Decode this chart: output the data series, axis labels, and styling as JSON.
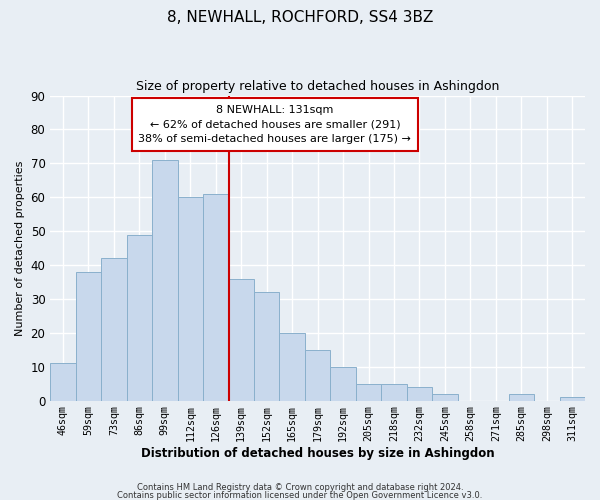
{
  "title": "8, NEWHALL, ROCHFORD, SS4 3BZ",
  "subtitle": "Size of property relative to detached houses in Ashingdon",
  "xlabel": "Distribution of detached houses by size in Ashingdon",
  "ylabel": "Number of detached properties",
  "bar_color": "#c8d8ec",
  "bar_edge_color": "#8ab0cc",
  "categories": [
    "46sqm",
    "59sqm",
    "73sqm",
    "86sqm",
    "99sqm",
    "112sqm",
    "126sqm",
    "139sqm",
    "152sqm",
    "165sqm",
    "179sqm",
    "192sqm",
    "205sqm",
    "218sqm",
    "232sqm",
    "245sqm",
    "258sqm",
    "271sqm",
    "285sqm",
    "298sqm",
    "311sqm"
  ],
  "values": [
    11,
    38,
    42,
    49,
    71,
    60,
    61,
    36,
    32,
    20,
    15,
    10,
    5,
    5,
    4,
    2,
    0,
    0,
    2,
    0,
    1
  ],
  "vline_color": "#cc0000",
  "annotation_title": "8 NEWHALL: 131sqm",
  "annotation_line1": "← 62% of detached houses are smaller (291)",
  "annotation_line2": "38% of semi-detached houses are larger (175) →",
  "annotation_box_facecolor": "#ffffff",
  "annotation_box_edgecolor": "#cc0000",
  "footer1": "Contains HM Land Registry data © Crown copyright and database right 2024.",
  "footer2": "Contains public sector information licensed under the Open Government Licence v3.0.",
  "ylim": [
    0,
    90
  ],
  "yticks": [
    0,
    10,
    20,
    30,
    40,
    50,
    60,
    70,
    80,
    90
  ],
  "bg_color": "#e8eef4",
  "grid_color": "#ffffff",
  "vline_bar_index": 7
}
